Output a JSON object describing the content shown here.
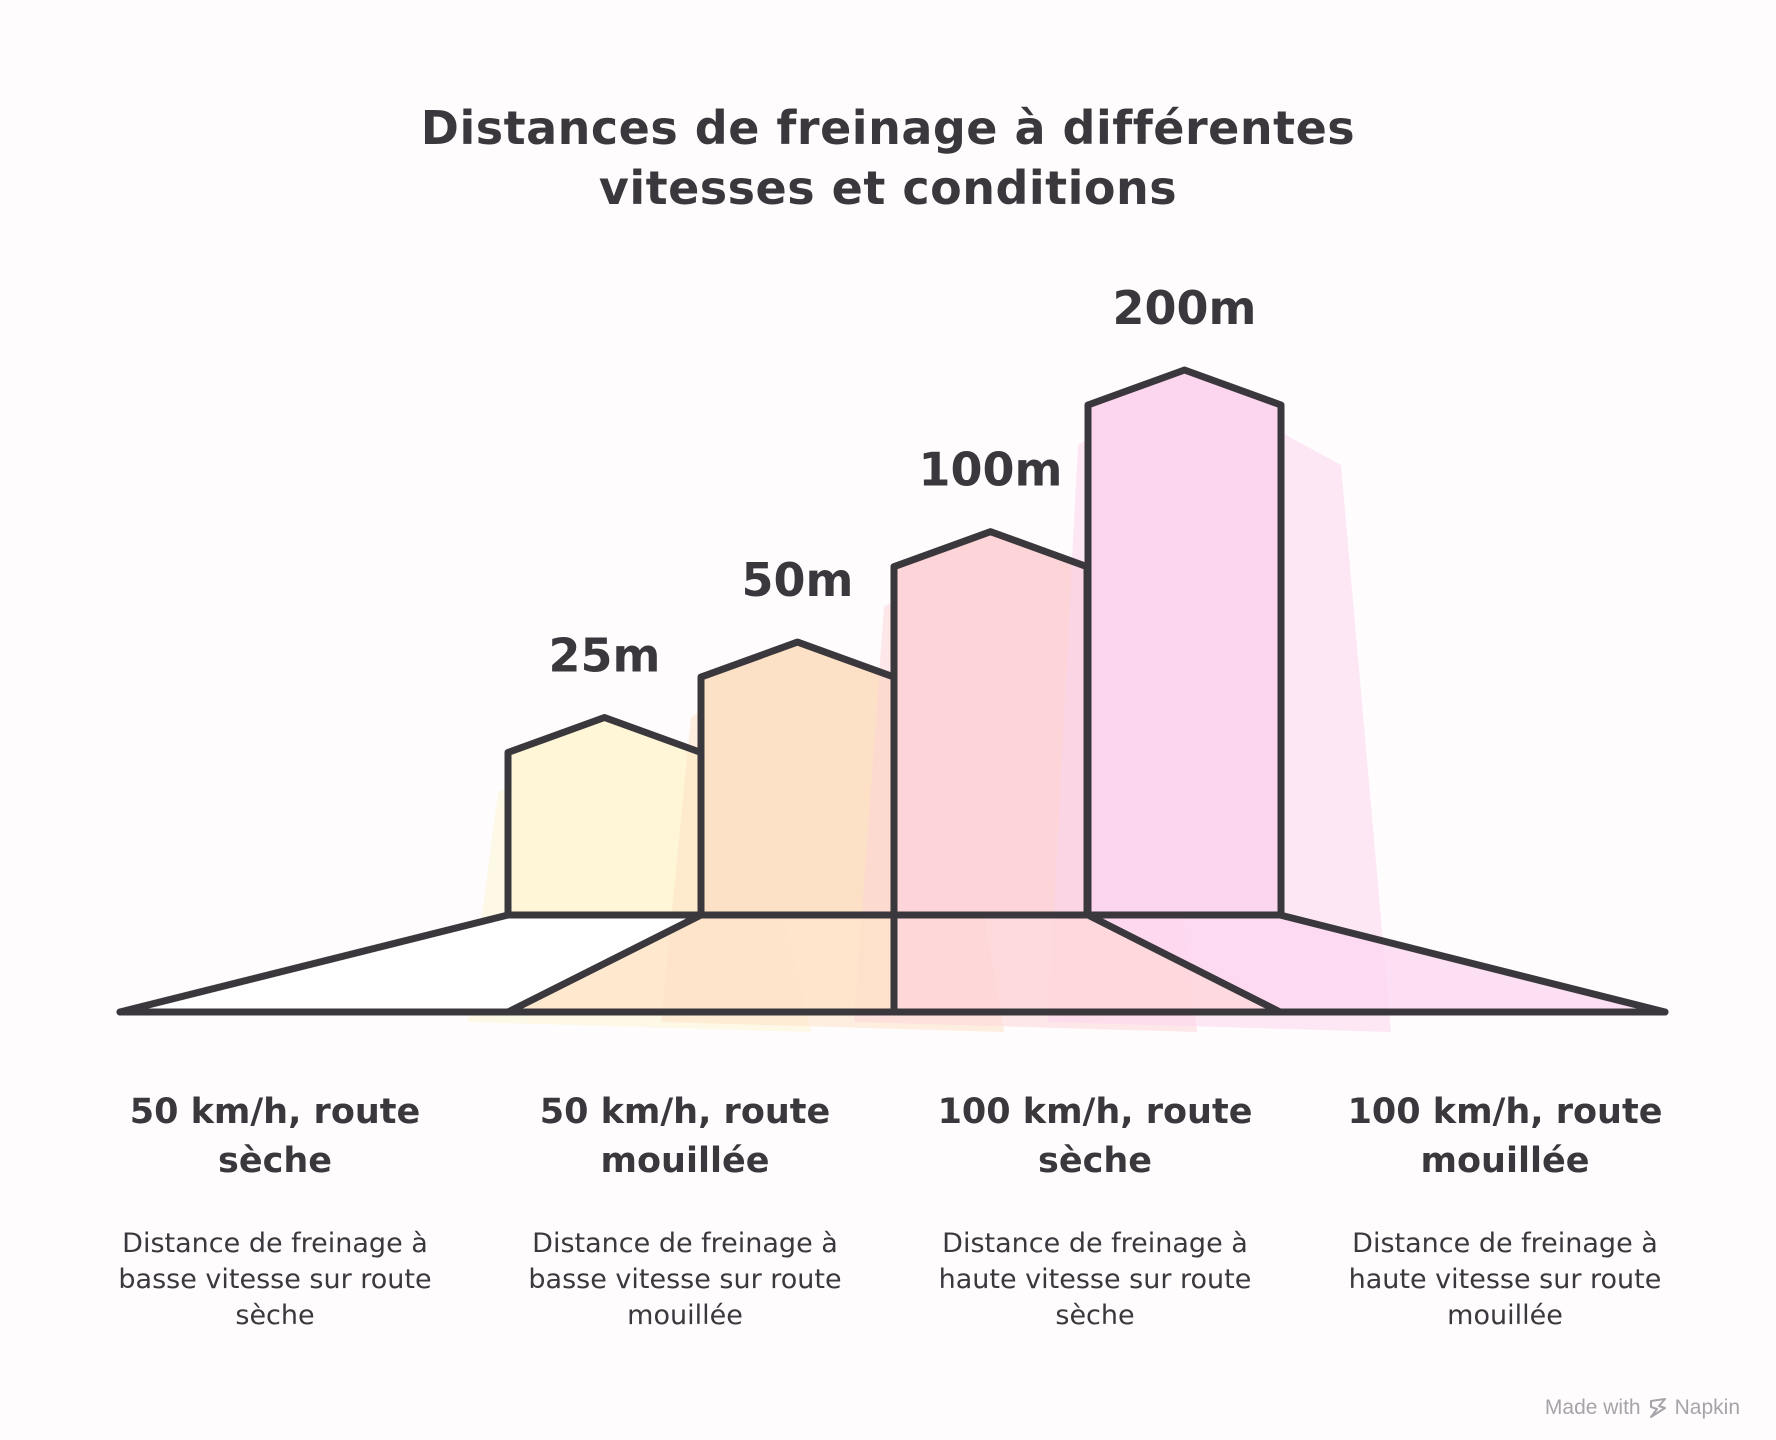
{
  "title_lines": [
    "Distances de freinage à différentes",
    "vitesses et conditions"
  ],
  "chart_data": {
    "type": "bar",
    "title": "Distances de freinage à différentes vitesses et conditions",
    "categories": [
      "50 km/h, route sèche",
      "50 km/h, route mouillée",
      "100 km/h, route sèche",
      "100 km/h, route mouillée"
    ],
    "values": [
      25,
      50,
      100,
      200
    ],
    "value_labels": [
      "25m",
      "50m",
      "100m",
      "200m"
    ],
    "unit": "m",
    "colors": [
      "#fef6d6",
      "#fde1c6",
      "#fdd5d8",
      "#fcd5ef"
    ],
    "descriptions": [
      "Distance de freinage à basse vitesse sur route sèche",
      "Distance de freinage à basse vitesse sur route mouillée",
      "Distance de freinage à haute vitesse sur route sèche",
      "Distance de freinage à haute vitesse sur route mouillée"
    ],
    "grid": false,
    "legend": "none"
  },
  "categories_display": [
    {
      "label": "50 km/h, route sèche",
      "desc": "Distance de freinage à basse vitesse sur route sèche"
    },
    {
      "label": "50 km/h, route mouillée",
      "desc": "Distance de freinage à basse vitesse sur route mouillée"
    },
    {
      "label": "100 km/h, route sèche",
      "desc": "Distance de freinage à haute vitesse sur route sèche"
    },
    {
      "label": "100 km/h, route mouillée",
      "desc": "Distance de freinage à haute vitesse sur route mouillée"
    }
  ],
  "footer": {
    "text": "Made with",
    "brand": "Napkin"
  }
}
